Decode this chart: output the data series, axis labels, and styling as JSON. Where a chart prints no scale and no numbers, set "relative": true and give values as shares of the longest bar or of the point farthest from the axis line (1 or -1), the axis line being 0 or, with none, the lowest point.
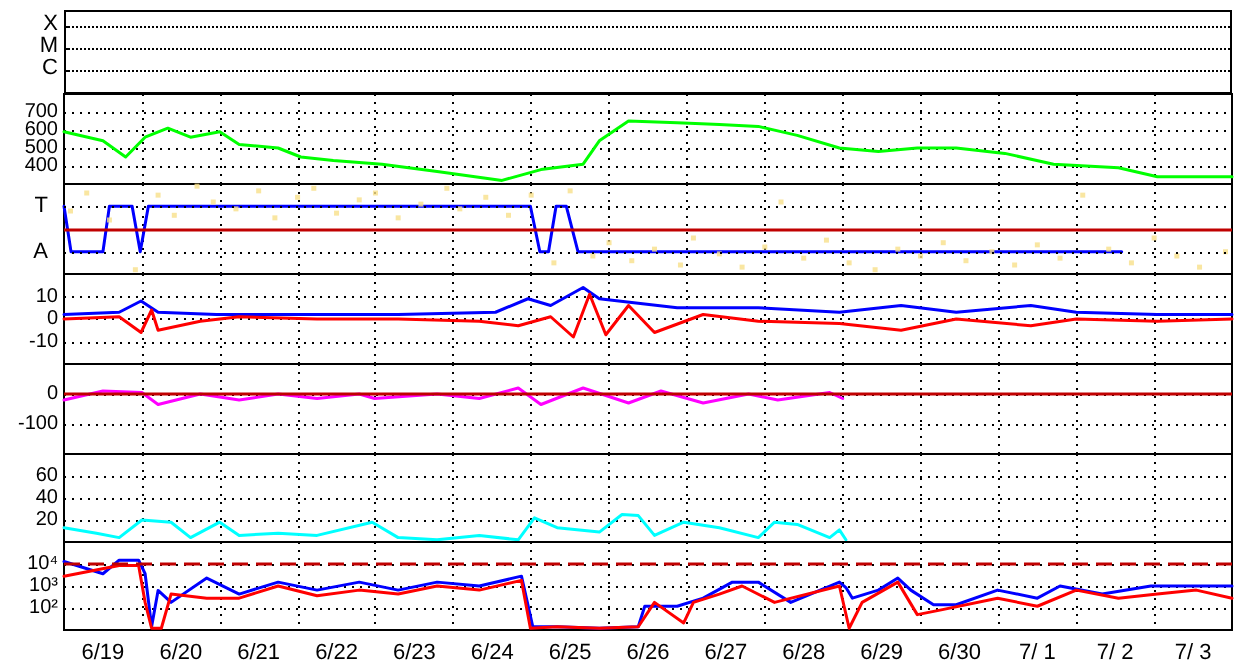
{
  "chart_data": [
    {
      "type": "other",
      "annotations": [
        "X",
        "M",
        "C"
      ]
    },
    {
      "type": "line",
      "xlim": [
        "--06-19T00:00",
        "--07-04T00:00"
      ],
      "ylim": [
        300,
        800
      ],
      "yticks": [
        400,
        500,
        600,
        700
      ],
      "tick_labels": "y",
      "grid": true,
      "xticks": [
        {
          "value": "--06-19T12:00",
          "label": "6/19"
        },
        {
          "value": "--06-20T00:00",
          "label": null
        },
        {
          "value": "--06-20T12:00",
          "label": "6/20"
        },
        {
          "value": "--06-21T00:00",
          "label": null
        },
        {
          "value": "--06-21T12:00",
          "label": "6/21"
        },
        {
          "value": "--06-22T00:00",
          "label": null
        },
        {
          "value": "--06-22T12:00",
          "label": "6/22"
        },
        {
          "value": "--06-23T00:00",
          "label": null
        },
        {
          "value": "--06-23T12:00",
          "label": "6/23"
        },
        {
          "value": "--06-24T00:00",
          "label": null
        },
        {
          "value": "--06-24T12:00",
          "label": "6/24"
        },
        {
          "value": "--06-25T00:00",
          "label": null
        },
        {
          "value": "--06-25T12:00",
          "label": "6/25"
        },
        {
          "value": "--06-26T00:00",
          "label": null
        },
        {
          "value": "--06-26T12:00",
          "label": "6/26"
        },
        {
          "value": "--06-27T00:00",
          "label": null
        },
        {
          "value": "--06-27T12:00",
          "label": "6/27"
        },
        {
          "value": "--06-28T00:00",
          "label": null
        },
        {
          "value": "--06-28T12:00",
          "label": "6/28"
        },
        {
          "value": "--06-29T00:00",
          "label": null
        },
        {
          "value": "--06-29T12:00",
          "label": "6/29"
        },
        {
          "value": "--06-30T00:00",
          "label": null
        },
        {
          "value": "--06-30T12:00",
          "label": "6/30"
        },
        {
          "value": "--07-01T00:00",
          "label": null
        },
        {
          "value": "--07-01T12:00",
          "label": "7/ 1"
        },
        {
          "value": "--07-02T00:00",
          "label": null
        },
        {
          "value": "--07-02T12:00",
          "label": "7/ 2"
        },
        {
          "value": "--07-03T00:00",
          "label": null
        },
        {
          "value": "--07-03T12:00",
          "label": "7/ 3"
        }
      ],
      "series": [
        {
          "color": "#00ff00",
          "x": [
            "--06-19T00:00",
            "--06-19T12:00",
            "--06-19T19:00",
            "--06-20T01:00",
            "--06-20T08:00",
            "--06-20T15:00",
            "--06-21T00:00",
            "--06-21T06:00",
            "--06-21T18:00",
            "--06-22T01:00",
            "--06-22T11:00",
            "--06-23T02:00",
            "--06-23T19:00",
            "--06-24T15:00",
            "--06-25T03:00",
            "--06-25T16:00",
            "--06-25T21:00",
            "--06-26T06:00",
            "--06-26T21:00",
            "--06-27T10:00",
            "--06-27T22:00",
            "--06-28T10:00",
            "--06-28T23:00",
            "--06-29T11:00",
            "--06-29T23:00",
            "--06-30T11:00",
            "--07-01T02:00",
            "--07-01T17:00",
            "--07-02T13:00",
            "--07-03T01:00",
            "--07-04T00:00"
          ],
          "values": [
            590,
            540,
            450,
            560,
            610,
            560,
            590,
            520,
            500,
            450,
            430,
            410,
            370,
            320,
            380,
            410,
            540,
            650,
            640,
            630,
            620,
            570,
            500,
            480,
            500,
            500,
            470,
            410,
            390,
            340,
            340
          ]
        }
      ]
    },
    {
      "type": "line",
      "relative": true,
      "xlim": [
        "--06-19T00:00",
        "--07-04T00:00"
      ],
      "tick_labels": false,
      "grid": true,
      "xticks": [
        {
          "value": "--06-19T12:00",
          "label": "6/19"
        },
        {
          "value": "--06-20T00:00",
          "label": null
        },
        {
          "value": "--06-20T12:00",
          "label": "6/20"
        },
        {
          "value": "--06-21T00:00",
          "label": null
        },
        {
          "value": "--06-21T12:00",
          "label": "6/21"
        },
        {
          "value": "--06-22T00:00",
          "label": null
        },
        {
          "value": "--06-22T12:00",
          "label": "6/22"
        },
        {
          "value": "--06-23T00:00",
          "label": null
        },
        {
          "value": "--06-23T12:00",
          "label": "6/23"
        },
        {
          "value": "--06-24T00:00",
          "label": null
        },
        {
          "value": "--06-24T12:00",
          "label": "6/24"
        },
        {
          "value": "--06-25T00:00",
          "label": null
        },
        {
          "value": "--06-25T12:00",
          "label": "6/25"
        },
        {
          "value": "--06-26T00:00",
          "label": null
        },
        {
          "value": "--06-26T12:00",
          "label": "6/26"
        },
        {
          "value": "--06-27T00:00",
          "label": null
        },
        {
          "value": "--06-27T12:00",
          "label": "6/27"
        },
        {
          "value": "--06-28T00:00",
          "label": null
        },
        {
          "value": "--06-28T12:00",
          "label": "6/28"
        },
        {
          "value": "--06-29T00:00",
          "label": null
        },
        {
          "value": "--06-29T12:00",
          "label": "6/29"
        },
        {
          "value": "--06-30T00:00",
          "label": null
        },
        {
          "value": "--06-30T12:00",
          "label": "6/30"
        },
        {
          "value": "--07-01T00:00",
          "label": null
        },
        {
          "value": "--07-01T12:00",
          "label": "7/ 1"
        },
        {
          "value": "--07-02T00:00",
          "label": null
        },
        {
          "value": "--07-02T12:00",
          "label": "7/ 2"
        },
        {
          "value": "--07-03T00:00",
          "label": null
        },
        {
          "value": "--07-03T12:00",
          "label": "7/ 3"
        }
      ],
      "annotations": [
        "T",
        "A"
      ],
      "ref_lines": [
        {
          "axis": "y",
          "value": 0,
          "label": null,
          "color": "#c00000"
        }
      ],
      "series": [
        {
          "type": "scatter",
          "marker": "square",
          "color": "#f8e08a",
          "x": [
            "--06-19T02:00",
            "--06-19T07:00",
            "--06-19T14:00",
            "--06-19T22:00",
            "--06-20T05:00",
            "--06-20T10:00",
            "--06-20T17:00",
            "--06-20T22:00",
            "--06-21T05:00",
            "--06-21T12:00",
            "--06-21T17:00",
            "--06-22T00:00",
            "--06-22T05:00",
            "--06-22T12:00",
            "--06-22T19:00",
            "--06-23T00:00",
            "--06-23T07:00",
            "--06-23T14:00",
            "--06-23T22:00",
            "--06-24T02:00",
            "--06-24T10:00",
            "--06-24T17:00",
            "--06-25T00:00",
            "--06-25T07:00",
            "--06-25T12:00",
            "--06-25T19:00",
            "--06-26T00:00",
            "--06-26T07:00",
            "--06-26T14:00",
            "--06-26T22:00",
            "--06-27T02:00",
            "--06-27T10:00",
            "--06-27T17:00",
            "--06-28T00:00",
            "--06-28T05:00",
            "--06-28T12:00",
            "--06-28T19:00",
            "--06-29T02:00",
            "--06-29T10:00",
            "--06-29T17:00",
            "--06-30T00:00",
            "--06-30T07:00",
            "--06-30T14:00",
            "--06-30T22:00",
            "--07-01T05:00",
            "--07-01T12:00",
            "--07-01T19:00",
            "--07-02T02:00",
            "--07-02T10:00",
            "--07-02T17:00",
            "--07-03T00:00",
            "--07-03T07:00",
            "--07-03T14:00",
            "--07-03T22:00"
          ],
          "values": [
            0.42,
            0.84,
            0.21,
            -0.95,
            0.79,
            0.32,
            1,
            0.63,
            0.47,
            0.89,
            0.26,
            0.74,
            0.95,
            0.37,
            0.68,
            0.84,
            0.26,
            0.58,
            0.95,
            0.47,
            0.74,
            0.32,
            0.79,
            -0.79,
            0.89,
            -0.63,
            -0.32,
            -0.74,
            -0.47,
            -0.84,
            -0.21,
            -0.58,
            -0.89,
            -0.42,
            0.63,
            -0.68,
            -0.26,
            -0.79,
            -0.95,
            -0.47,
            -0.63,
            -0.32,
            -0.74,
            -0.53,
            -0.84,
            -0.37,
            -0.68,
            0.79,
            -0.47,
            -0.79,
            -0.21,
            -0.63,
            -0.89,
            -0.53
          ]
        },
        {
          "color": "#0000ff",
          "x": [
            "--06-19T00:00",
            "--06-19T02:10",
            "--06-19T12:00",
            "--06-19T14:00",
            "--06-19T21:00",
            "--06-19T23:30",
            "--06-20T02:00",
            "--06-24T23:45",
            "--06-25T02:40",
            "--06-25T05:20",
            "--06-25T07:40",
            "--06-25T10:50",
            "--06-25T14:25",
            "--07-02T14:00"
          ],
          "values": [
            0.53,
            -0.53,
            -0.53,
            0.53,
            0.53,
            -0.53,
            0.53,
            0.53,
            -0.53,
            -0.53,
            0.53,
            0.53,
            -0.53,
            -0.53
          ]
        }
      ]
    },
    {
      "type": "line",
      "xlim": [
        "--06-19T00:00",
        "--07-04T00:00"
      ],
      "ylim": [
        -20,
        20
      ],
      "yticks": [
        -10,
        0,
        10
      ],
      "tick_labels": "y",
      "grid": true,
      "xticks": [
        {
          "value": "--06-19T12:00",
          "label": "6/19"
        },
        {
          "value": "--06-20T00:00",
          "label": null
        },
        {
          "value": "--06-20T12:00",
          "label": "6/20"
        },
        {
          "value": "--06-21T00:00",
          "label": null
        },
        {
          "value": "--06-21T12:00",
          "label": "6/21"
        },
        {
          "value": "--06-22T00:00",
          "label": null
        },
        {
          "value": "--06-22T12:00",
          "label": "6/22"
        },
        {
          "value": "--06-23T00:00",
          "label": null
        },
        {
          "value": "--06-23T12:00",
          "label": "6/23"
        },
        {
          "value": "--06-24T00:00",
          "label": null
        },
        {
          "value": "--06-24T12:00",
          "label": "6/24"
        },
        {
          "value": "--06-25T00:00",
          "label": null
        },
        {
          "value": "--06-25T12:00",
          "label": "6/25"
        },
        {
          "value": "--06-26T00:00",
          "label": null
        },
        {
          "value": "--06-26T12:00",
          "label": "6/26"
        },
        {
          "value": "--06-27T00:00",
          "label": null
        },
        {
          "value": "--06-27T12:00",
          "label": "6/27"
        },
        {
          "value": "--06-28T00:00",
          "label": null
        },
        {
          "value": "--06-28T12:00",
          "label": "6/28"
        },
        {
          "value": "--06-29T00:00",
          "label": null
        },
        {
          "value": "--06-29T12:00",
          "label": "6/29"
        },
        {
          "value": "--06-30T00:00",
          "label": null
        },
        {
          "value": "--06-30T12:00",
          "label": "6/30"
        },
        {
          "value": "--07-01T00:00",
          "label": null
        },
        {
          "value": "--07-01T12:00",
          "label": "7/ 1"
        },
        {
          "value": "--07-02T00:00",
          "label": null
        },
        {
          "value": "--07-02T12:00",
          "label": "7/ 2"
        },
        {
          "value": "--07-03T00:00",
          "label": null
        },
        {
          "value": "--07-03T12:00",
          "label": "7/ 3"
        }
      ],
      "series": [
        {
          "color": "#0000ff",
          "x": [
            "--06-19T00:00",
            "--06-19T17:00",
            "--06-19T23:45",
            "--06-20T05:00",
            "--06-20T23:00",
            "--06-21T06:00",
            "--06-22T06:00",
            "--06-23T07:00",
            "--06-24T13:00",
            "--06-24T23:00",
            "--06-25T06:00",
            "--06-25T16:00",
            "--06-25T21:00",
            "--06-26T09:00",
            "--06-26T21:00",
            "--06-27T22:00",
            "--06-28T23:00",
            "--06-29T18:00",
            "--06-30T11:00",
            "--07-01T10:00",
            "--07-02T00:00",
            "--07-03T01:00",
            "--07-04T00:00"
          ],
          "values": [
            2,
            3,
            8,
            3,
            2,
            2,
            2,
            2,
            3,
            9,
            6,
            14,
            9,
            7,
            5,
            5,
            3,
            6,
            3,
            6,
            3,
            2,
            2
          ]
        },
        {
          "color": "#ff0000",
          "x": [
            "--06-19T00:00",
            "--06-19T17:00",
            "--06-19T23:45",
            "--06-20T03:00",
            "--06-20T05:00",
            "--06-20T18:00",
            "--06-21T06:00",
            "--06-22T06:00",
            "--06-23T07:00",
            "--06-24T08:00",
            "--06-24T20:00",
            "--06-25T06:00",
            "--06-25T13:00",
            "--06-25T18:00",
            "--06-25T23:00",
            "--06-26T06:00",
            "--06-26T14:00",
            "--06-27T05:00",
            "--06-27T22:00",
            "--06-28T23:00",
            "--06-29T18:00",
            "--06-30T11:00",
            "--07-01T10:00",
            "--07-02T00:00",
            "--07-03T01:00",
            "--07-04T00:00"
          ],
          "values": [
            0,
            1,
            -6,
            4,
            -5,
            -1,
            1,
            0,
            0,
            -1,
            -3,
            1,
            -8,
            11,
            -7,
            6,
            -6,
            2,
            -1,
            -2,
            -5,
            0,
            -3,
            0,
            -1,
            0
          ]
        }
      ]
    },
    {
      "type": "line",
      "xlim": [
        "--06-19T00:00",
        "--07-04T00:00"
      ],
      "ylim": [
        -200,
        100
      ],
      "yticks": [
        -100,
        0
      ],
      "tick_labels": "y",
      "grid": true,
      "xticks": [
        {
          "value": "--06-19T12:00",
          "label": "6/19"
        },
        {
          "value": "--06-20T00:00",
          "label": null
        },
        {
          "value": "--06-20T12:00",
          "label": "6/20"
        },
        {
          "value": "--06-21T00:00",
          "label": null
        },
        {
          "value": "--06-21T12:00",
          "label": "6/21"
        },
        {
          "value": "--06-22T00:00",
          "label": null
        },
        {
          "value": "--06-22T12:00",
          "label": "6/22"
        },
        {
          "value": "--06-23T00:00",
          "label": null
        },
        {
          "value": "--06-23T12:00",
          "label": "6/23"
        },
        {
          "value": "--06-24T00:00",
          "label": null
        },
        {
          "value": "--06-24T12:00",
          "label": "6/24"
        },
        {
          "value": "--06-25T00:00",
          "label": null
        },
        {
          "value": "--06-25T12:00",
          "label": "6/25"
        },
        {
          "value": "--06-26T00:00",
          "label": null
        },
        {
          "value": "--06-26T12:00",
          "label": "6/26"
        },
        {
          "value": "--06-27T00:00",
          "label": null
        },
        {
          "value": "--06-27T12:00",
          "label": "6/27"
        },
        {
          "value": "--06-28T00:00",
          "label": null
        },
        {
          "value": "--06-28T12:00",
          "label": "6/28"
        },
        {
          "value": "--06-29T00:00",
          "label": null
        },
        {
          "value": "--06-29T12:00",
          "label": "6/29"
        },
        {
          "value": "--06-30T00:00",
          "label": null
        },
        {
          "value": "--06-30T12:00",
          "label": "6/30"
        },
        {
          "value": "--07-01T00:00",
          "label": null
        },
        {
          "value": "--07-01T12:00",
          "label": "7/ 1"
        },
        {
          "value": "--07-02T00:00",
          "label": null
        },
        {
          "value": "--07-02T12:00",
          "label": "7/ 2"
        },
        {
          "value": "--07-03T00:00",
          "label": null
        },
        {
          "value": "--07-03T12:00",
          "label": "7/ 3"
        }
      ],
      "ref_lines": [
        {
          "axis": "y",
          "value": 0,
          "label": null,
          "color": "#c00000"
        }
      ],
      "series": [
        {
          "color": "#ff00ff",
          "x": [
            "--06-19T00:00",
            "--06-19T12:00",
            "--06-20T00:00",
            "--06-20T05:00",
            "--06-20T18:00",
            "--06-21T06:00",
            "--06-21T18:00",
            "--06-22T06:00",
            "--06-22T19:00",
            "--06-22T23:45",
            "--06-23T19:00",
            "--06-24T08:00",
            "--06-24T20:00",
            "--06-25T03:00",
            "--06-25T16:00",
            "--06-26T06:00",
            "--06-26T16:00",
            "--06-27T05:00",
            "--06-27T19:00",
            "--06-28T04:00",
            "--06-28T20:00",
            "--06-29T00:00"
          ],
          "values": [
            -20,
            10,
            5,
            -35,
            0,
            -20,
            0,
            -15,
            0,
            -15,
            0,
            -15,
            20,
            -35,
            20,
            -30,
            10,
            -30,
            0,
            -20,
            5,
            -15
          ]
        }
      ]
    },
    {
      "type": "line",
      "xlim": [
        "--06-19T00:00",
        "--07-04T00:00"
      ],
      "ylim": [
        0,
        80
      ],
      "yticks": [
        20,
        40,
        60
      ],
      "tick_labels": "y",
      "grid": true,
      "xticks": [
        {
          "value": "--06-19T12:00",
          "label": "6/19"
        },
        {
          "value": "--06-20T00:00",
          "label": null
        },
        {
          "value": "--06-20T12:00",
          "label": "6/20"
        },
        {
          "value": "--06-21T00:00",
          "label": null
        },
        {
          "value": "--06-21T12:00",
          "label": "6/21"
        },
        {
          "value": "--06-22T00:00",
          "label": null
        },
        {
          "value": "--06-22T12:00",
          "label": "6/22"
        },
        {
          "value": "--06-23T00:00",
          "label": null
        },
        {
          "value": "--06-23T12:00",
          "label": "6/23"
        },
        {
          "value": "--06-24T00:00",
          "label": null
        },
        {
          "value": "--06-24T12:00",
          "label": "6/24"
        },
        {
          "value": "--06-25T00:00",
          "label": null
        },
        {
          "value": "--06-25T12:00",
          "label": "6/25"
        },
        {
          "value": "--06-26T00:00",
          "label": null
        },
        {
          "value": "--06-26T12:00",
          "label": "6/26"
        },
        {
          "value": "--06-27T00:00",
          "label": null
        },
        {
          "value": "--06-27T12:00",
          "label": "6/27"
        },
        {
          "value": "--06-28T00:00",
          "label": null
        },
        {
          "value": "--06-28T12:00",
          "label": "6/28"
        },
        {
          "value": "--06-29T00:00",
          "label": null
        },
        {
          "value": "--06-29T12:00",
          "label": "6/29"
        },
        {
          "value": "--06-30T00:00",
          "label": null
        },
        {
          "value": "--06-30T12:00",
          "label": "6/30"
        },
        {
          "value": "--07-01T00:00",
          "label": null
        },
        {
          "value": "--07-01T12:00",
          "label": "7/ 1"
        },
        {
          "value": "--07-02T00:00",
          "label": null
        },
        {
          "value": "--07-02T12:00",
          "label": "7/ 2"
        },
        {
          "value": "--07-03T00:00",
          "label": null
        },
        {
          "value": "--07-03T12:00",
          "label": "7/ 3"
        }
      ],
      "series": [
        {
          "color": "#00ffff",
          "x": [
            "--06-19T00:00",
            "--06-19T10:00",
            "--06-19T17:00",
            "--06-20T00:00",
            "--06-20T09:00",
            "--06-20T15:00",
            "--06-21T00:00",
            "--06-21T06:00",
            "--06-21T18:00",
            "--06-22T06:00",
            "--06-22T23:00",
            "--06-23T07:00",
            "--06-23T19:00",
            "--06-24T08:00",
            "--06-24T20:00",
            "--06-25T01:00",
            "--06-25T08:00",
            "--06-25T21:00",
            "--06-26T04:00",
            "--06-26T09:00",
            "--06-26T14:00",
            "--06-26T23:00",
            "--06-27T10:00",
            "--06-27T22:00",
            "--06-28T03:00",
            "--06-28T10:00",
            "--06-28T20:00",
            "--06-28T23:00",
            "--06-29T01:00"
          ],
          "values": [
            13,
            8,
            4,
            20,
            18,
            4,
            18,
            6,
            8,
            6,
            18,
            4,
            2,
            6,
            2,
            22,
            13,
            9,
            25,
            24,
            6,
            18,
            13,
            4,
            18,
            16,
            4,
            11,
            2
          ]
        }
      ]
    },
    {
      "type": "line",
      "xlim": [
        "--06-19T00:00",
        "--07-04T00:00"
      ],
      "ylim": [
        10,
        100000
      ],
      "log": "y",
      "yticks": [
        {
          "value": 100,
          "label": "10²"
        },
        {
          "value": 1000,
          "label": "10³"
        },
        {
          "value": 10000,
          "label": "10⁴"
        }
      ],
      "grid": true,
      "xticks": [
        {
          "value": "--06-19T12:00",
          "label": "6/19"
        },
        {
          "value": "--06-20T00:00",
          "label": null
        },
        {
          "value": "--06-20T12:00",
          "label": "6/20"
        },
        {
          "value": "--06-21T00:00",
          "label": null
        },
        {
          "value": "--06-21T12:00",
          "label": "6/21"
        },
        {
          "value": "--06-22T00:00",
          "label": null
        },
        {
          "value": "--06-22T12:00",
          "label": "6/22"
        },
        {
          "value": "--06-23T00:00",
          "label": null
        },
        {
          "value": "--06-23T12:00",
          "label": "6/23"
        },
        {
          "value": "--06-24T00:00",
          "label": null
        },
        {
          "value": "--06-24T12:00",
          "label": "6/24"
        },
        {
          "value": "--06-25T00:00",
          "label": null
        },
        {
          "value": "--06-25T12:00",
          "label": "6/25"
        },
        {
          "value": "--06-26T00:00",
          "label": null
        },
        {
          "value": "--06-26T12:00",
          "label": "6/26"
        },
        {
          "value": "--06-27T00:00",
          "label": null
        },
        {
          "value": "--06-27T12:00",
          "label": "6/27"
        },
        {
          "value": "--06-28T00:00",
          "label": null
        },
        {
          "value": "--06-28T12:00",
          "label": "6/28"
        },
        {
          "value": "--06-29T00:00",
          "label": null
        },
        {
          "value": "--06-29T12:00",
          "label": "6/29"
        },
        {
          "value": "--06-30T00:00",
          "label": null
        },
        {
          "value": "--06-30T12:00",
          "label": "6/30"
        },
        {
          "value": "--07-01T00:00",
          "label": null
        },
        {
          "value": "--07-01T12:00",
          "label": "7/ 1"
        },
        {
          "value": "--07-02T00:00",
          "label": null
        },
        {
          "value": "--07-02T12:00",
          "label": "7/ 2"
        },
        {
          "value": "--07-03T00:00",
          "label": null
        },
        {
          "value": "--07-03T12:00",
          "label": "7/ 3"
        }
      ],
      "ref_lines": [
        {
          "axis": "y",
          "value": 10000,
          "label": null,
          "color": "#c00000",
          "line_style": "dashed"
        }
      ],
      "series": [
        {
          "color": "#0000ff",
          "x": [
            "--06-19T00:00",
            "--06-19T12:00",
            "--06-19T17:00",
            "--06-19T23:00",
            "--06-20T01:00",
            "--06-20T03:00",
            "--06-20T05:00",
            "--06-20T09:00",
            "--06-20T20:00",
            "--06-21T06:00",
            "--06-21T18:00",
            "--06-22T06:00",
            "--06-22T19:00",
            "--06-23T07:00",
            "--06-23T19:00",
            "--06-24T08:00",
            "--06-24T21:00",
            "--06-25T00:30",
            "--06-25T08:00",
            "--06-25T21:00",
            "--06-26T09:00",
            "--06-26T11:00",
            "--06-26T21:00",
            "--06-27T05:00",
            "--06-27T14:00",
            "--06-27T22:00",
            "--06-28T08:00",
            "--06-28T23:00",
            "--06-29T01:00",
            "--06-29T03:00",
            "--06-29T11:00",
            "--06-29T17:00",
            "--06-29T21:00",
            "--06-30T04:00",
            "--06-30T11:00",
            "--06-30T23:45",
            "--07-01T12:00",
            "--07-01T19:00",
            "--07-02T08:00",
            "--07-02T23:00",
            "--07-03T13:00",
            "--07-04T00:00"
          ],
          "values": [
            13000,
            3600,
            15000,
            15000,
            3600,
            14,
            630,
            180,
            2300,
            430,
            1500,
            650,
            1500,
            650,
            1500,
            1000,
            2800,
            14,
            14,
            12,
            14,
            120,
            120,
            280,
            1500,
            1500,
            180,
            1500,
            850,
            280,
            650,
            2300,
            650,
            140,
            140,
            650,
            280,
            1000,
            430,
            1000,
            1000,
            1000
          ]
        },
        {
          "color": "#ff0000",
          "x": [
            "--06-19T00:00",
            "--06-19T17:00",
            "--06-19T23:00",
            "--06-20T01:00",
            "--06-20T03:00",
            "--06-20T06:00",
            "--06-20T09:00",
            "--06-20T20:00",
            "--06-21T06:00",
            "--06-21T18:00",
            "--06-22T06:00",
            "--06-22T19:00",
            "--06-23T07:00",
            "--06-23T19:00",
            "--06-24T08:00",
            "--06-24T21:00",
            "--06-24T23:45",
            "--06-25T08:00",
            "--06-25T21:00",
            "--06-26T09:00",
            "--06-26T14:00",
            "--06-26T23:00",
            "--06-27T02:00",
            "--06-27T10:00",
            "--06-27T17:00",
            "--06-28T03:00",
            "--06-28T23:00",
            "--06-29T02:00",
            "--06-29T06:00",
            "--06-29T17:00",
            "--06-29T23:00",
            "--06-30T06:00",
            "--06-30T23:45",
            "--07-01T12:00",
            "--07-02T00:00",
            "--07-02T13:00",
            "--07-03T01:00",
            "--07-03T13:00",
            "--07-04T00:00"
          ],
          "values": [
            2800,
            8500,
            8500,
            180,
            12,
            12,
            430,
            280,
            280,
            1000,
            360,
            650,
            430,
            1000,
            650,
            1800,
            12,
            14,
            12,
            14,
            180,
            21,
            180,
            430,
            1000,
            180,
            1000,
            12,
            180,
            1500,
            50,
            80,
            280,
            120,
            650,
            280,
            430,
            650,
            280
          ]
        }
      ]
    }
  ]
}
